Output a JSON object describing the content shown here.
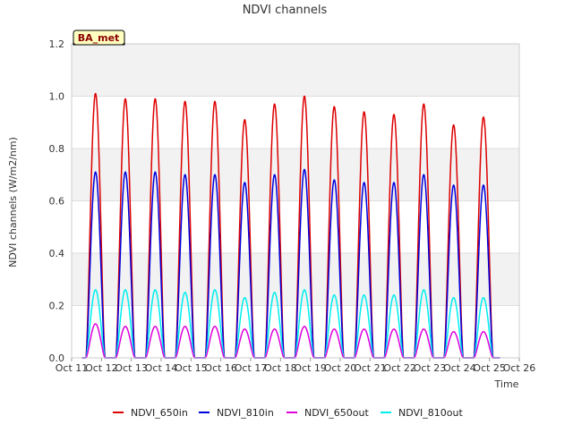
{
  "chart_data": {
    "type": "line",
    "title": "NDVI channels",
    "xlabel": "Time",
    "ylabel": "NDVI channels (W/m2/nm)",
    "badge": "BA_met",
    "ylim": [
      0.0,
      1.2
    ],
    "yticks": [
      "0.0",
      "0.2",
      "0.4",
      "0.6",
      "0.8",
      "1.0",
      "1.2"
    ],
    "xlim_days": [
      11,
      26
    ],
    "xticks": [
      "Oct 11",
      "Oct 12",
      "Oct 13",
      "Oct 14",
      "Oct 15",
      "Oct 16",
      "Oct 17",
      "Oct 18",
      "Oct 19",
      "Oct 20",
      "Oct 21",
      "Oct 22",
      "Oct 23",
      "Oct 24",
      "Oct 25",
      "Oct 26"
    ],
    "peak_days": [
      11.8,
      12.8,
      13.8,
      14.8,
      15.8,
      16.8,
      17.8,
      18.8,
      19.8,
      20.8,
      21.8,
      22.8,
      23.8,
      24.8
    ],
    "legend": [
      "NDVI_650in",
      "NDVI_810in",
      "NDVI_650out",
      "NDVI_810out"
    ],
    "series": [
      {
        "name": "NDVI_650in",
        "color": "#dd0000",
        "peaks": [
          1.01,
          0.99,
          0.99,
          0.98,
          0.98,
          0.91,
          0.97,
          1.0,
          0.96,
          0.94,
          0.93,
          0.97,
          0.89,
          0.92
        ]
      },
      {
        "name": "NDVI_810in",
        "color": "#0000dd",
        "peaks": [
          0.71,
          0.71,
          0.71,
          0.7,
          0.7,
          0.67,
          0.7,
          0.72,
          0.68,
          0.67,
          0.67,
          0.7,
          0.66,
          0.66
        ]
      },
      {
        "name": "NDVI_650out",
        "color": "#dd00dd",
        "peaks": [
          0.13,
          0.12,
          0.12,
          0.12,
          0.12,
          0.11,
          0.11,
          0.12,
          0.11,
          0.11,
          0.11,
          0.11,
          0.1,
          0.1
        ]
      },
      {
        "name": "NDVI_810out",
        "color": "#00eeee",
        "peaks": [
          0.26,
          0.26,
          0.26,
          0.25,
          0.26,
          0.23,
          0.25,
          0.26,
          0.24,
          0.24,
          0.24,
          0.26,
          0.23,
          0.23
        ]
      }
    ]
  }
}
